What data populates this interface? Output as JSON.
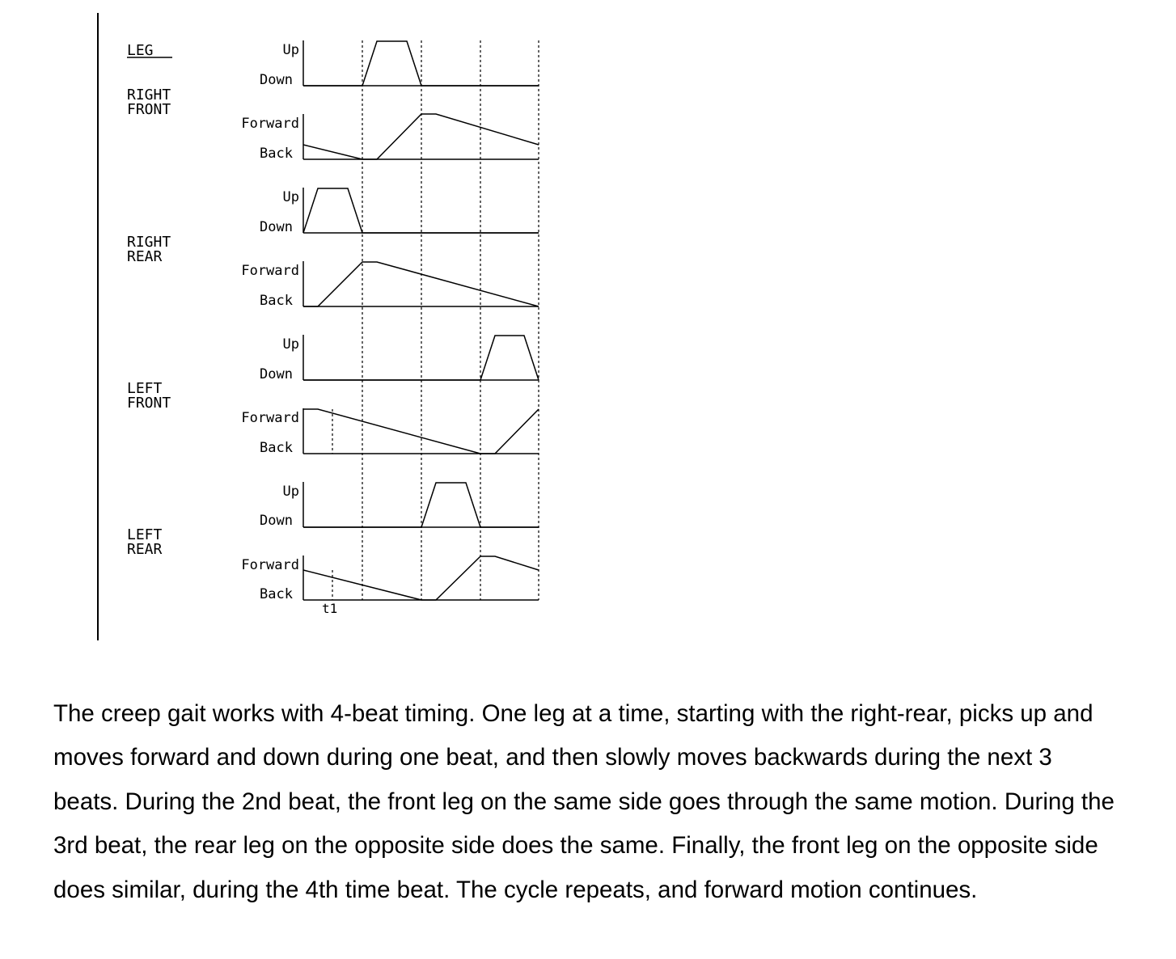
{
  "diagram": {
    "header": "LEG",
    "level_labels": {
      "up": "Up",
      "down": "Down",
      "forward": "Forward",
      "back": "Back"
    },
    "legs": [
      {
        "name_line1": "RIGHT",
        "name_line2": "FRONT"
      },
      {
        "name_line1": "RIGHT",
        "name_line2": "REAR"
      },
      {
        "name_line1": "LEFT",
        "name_line2": "FRONT"
      },
      {
        "name_line1": "LEFT",
        "name_line2": "REAR"
      }
    ],
    "time_marker": "t1"
  },
  "caption": {
    "text": "The creep gait works with 4-beat timing. One leg at a time, starting with the right-rear, picks up and moves forward and down during one beat, and then slowly moves backwards during the next 3 beats. During the 2nd beat, the front leg on the same side goes through the same mo­tion. During the 3rd beat, the rear leg on the opposite side does the same. Finally, the front leg on the opposite side does similar, during the 4th time beat. The cycle repeats, and forward mo­tion continues."
  }
}
